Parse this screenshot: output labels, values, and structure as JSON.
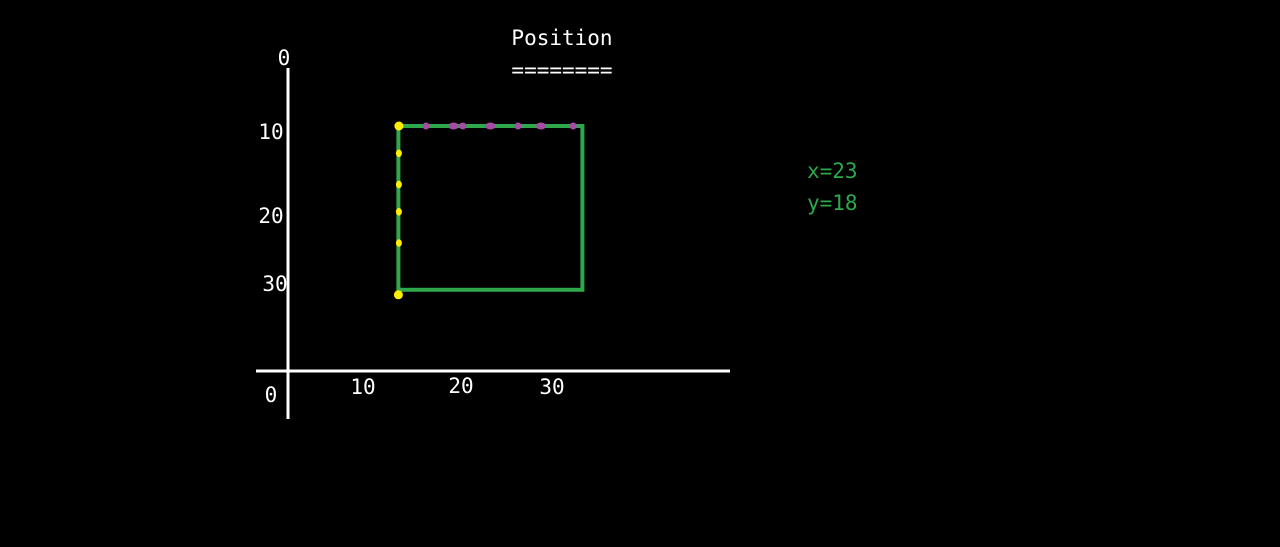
{
  "title": "Position",
  "title_underline": "========",
  "axes": {
    "x_ticks": [
      "0",
      "10",
      "20",
      "30"
    ],
    "y_ticks": [
      "0",
      "10",
      "20",
      "30"
    ]
  },
  "readout": {
    "x_text": "x=23",
    "y_text": "y=18"
  },
  "rectangle": {
    "x_range": [
      12,
      32
    ],
    "y_range": [
      10,
      31
    ]
  },
  "colors": {
    "background": "#000000",
    "axis": "#ffffff",
    "rectangle": "#2ea84a",
    "top_edge_dots": "#a64ca6",
    "left_edge_dots": "#ffee00",
    "readout": "#2ea84a"
  },
  "dots": {
    "top_edge_x": [
      12,
      15,
      18,
      19,
      22,
      25,
      27.5,
      31
    ],
    "left_edge_y": [
      10,
      13.5,
      17.5,
      21,
      25,
      31
    ]
  }
}
